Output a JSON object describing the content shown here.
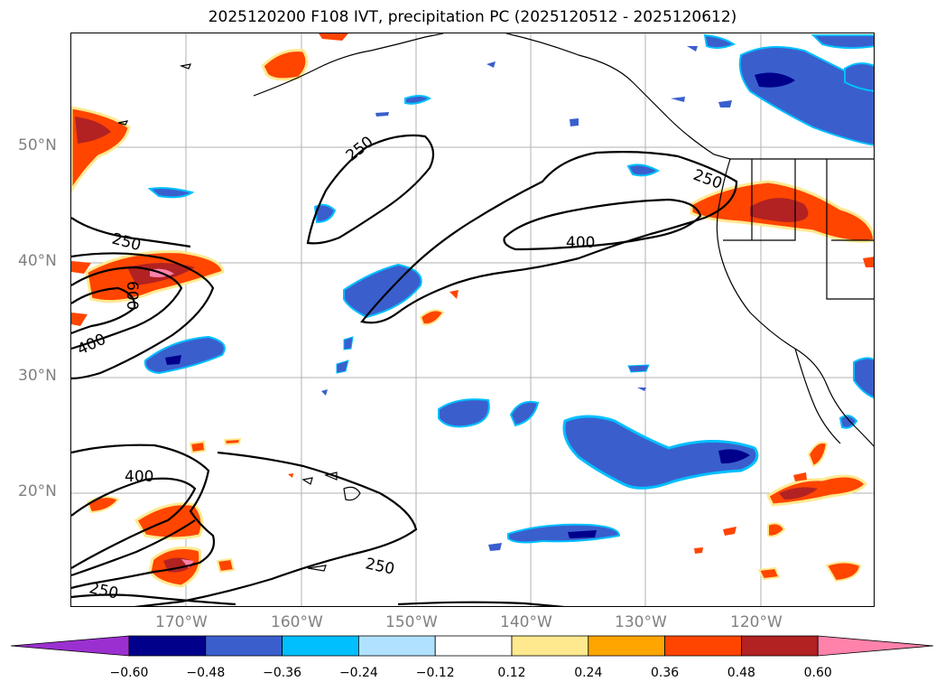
{
  "title": "2025120200 F108 IVT, precipitation PC (2025120512 - 2025120612)",
  "lat_labels": [
    "50°N",
    "40°N",
    "30°N",
    "20°N"
  ],
  "lon_labels": [
    "170°W",
    "160°W",
    "150°W",
    "140°W",
    "130°W",
    "120°W"
  ],
  "contour_labels": {
    "c250_a": "250",
    "c250_b": "250",
    "c250_c": "250",
    "c250_d": "250",
    "c250_e": "250",
    "c400_a": "400",
    "c400_b": "400",
    "c400_c": "400",
    "c600": "600"
  },
  "colorbar": {
    "ticks": [
      "−0.60",
      "−0.48",
      "−0.36",
      "−0.24",
      "−0.12",
      "0.12",
      "0.24",
      "0.36",
      "0.48",
      "0.60"
    ],
    "colors": [
      "#9b30d0",
      "#00008b",
      "#3a5fcd",
      "#00bfff",
      "#b0e2ff",
      "#ffffff",
      "#fee98f",
      "#ffa500",
      "#ff4500",
      "#b22222",
      "#ff82ab"
    ]
  },
  "colors": {
    "neg_dark": "#00008b",
    "neg_mid": "#3a5fcd",
    "neg_cyan": "#00bfff",
    "neg_light": "#b0e2ff",
    "pos_yellow": "#fee98f",
    "pos_orange": "#ffa500",
    "pos_red": "#ff4500",
    "pos_dark": "#b22222",
    "pos_pink": "#ff82ab"
  }
}
